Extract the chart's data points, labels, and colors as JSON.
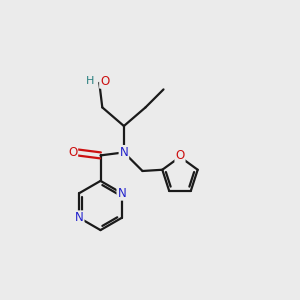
{
  "bg_color": "#ebebeb",
  "bond_color": "#1a1a1a",
  "N_color": "#2222cc",
  "O_color": "#cc1111",
  "H_color": "#2a8080",
  "figsize": [
    3.0,
    3.0
  ],
  "dpi": 100,
  "xlim": [
    0,
    10
  ],
  "ylim": [
    0,
    10
  ],
  "lw": 1.6,
  "fs": 8.5
}
